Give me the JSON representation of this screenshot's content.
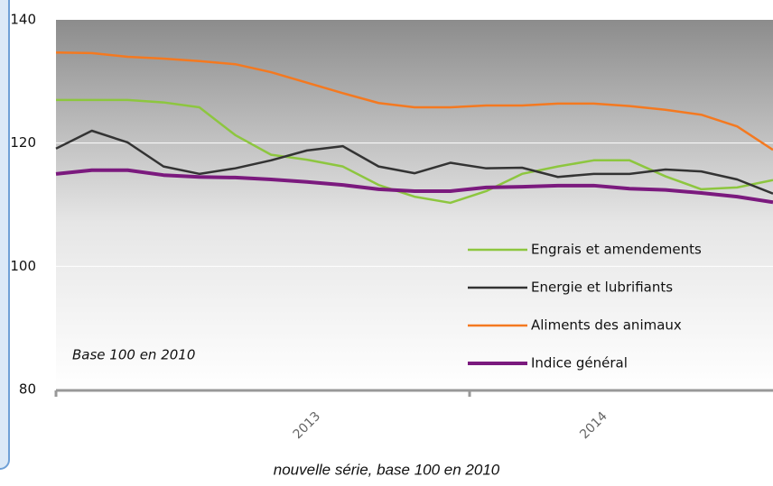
{
  "chart_data": {
    "type": "line",
    "caption": "nouvelle série, base 100 en 2010",
    "annotation": "Base 100 en 2010",
    "categories": [
      null,
      null,
      null,
      null,
      null,
      null,
      null,
      "2013",
      null,
      null,
      null,
      null,
      null,
      null,
      null,
      "2014",
      null,
      null,
      null,
      null,
      null
    ],
    "series": [
      {
        "name": "Engrais et amendements",
        "color": "#8dc63f",
        "values": [
          127.0,
          127.0,
          127.0,
          126.6,
          125.8,
          121.3,
          118.1,
          117.3,
          116.2,
          113.2,
          111.3,
          110.3,
          112.2,
          115.0,
          116.2,
          117.2,
          117.2,
          114.6,
          112.5,
          112.8,
          114.0
        ]
      },
      {
        "name": "Energie et lubrifiants",
        "color": "#333333",
        "values": [
          119.1,
          122.0,
          120.1,
          116.2,
          115.0,
          115.9,
          117.2,
          118.8,
          119.5,
          116.2,
          115.1,
          116.8,
          115.9,
          116.0,
          114.5,
          115.0,
          115.0,
          115.7,
          115.4,
          114.1,
          111.8
        ]
      },
      {
        "name": "Aliments des animaux",
        "color": "#f47920",
        "values": [
          134.7,
          134.6,
          134.0,
          133.7,
          133.3,
          132.8,
          131.5,
          129.8,
          128.1,
          126.5,
          125.8,
          125.8,
          126.1,
          126.1,
          126.4,
          126.4,
          126.0,
          125.4,
          124.6,
          122.7,
          118.9
        ]
      },
      {
        "name": "Indice général",
        "color": "#7b1a7e",
        "values": [
          115.0,
          115.6,
          115.6,
          114.8,
          114.5,
          114.4,
          114.1,
          113.7,
          113.2,
          112.5,
          112.2,
          112.2,
          112.8,
          112.9,
          113.1,
          113.1,
          112.6,
          112.4,
          111.9,
          111.3,
          110.4
        ]
      }
    ],
    "ylim": [
      80,
      140
    ],
    "yticks": [
      80,
      100,
      120,
      140
    ],
    "grid": true
  }
}
